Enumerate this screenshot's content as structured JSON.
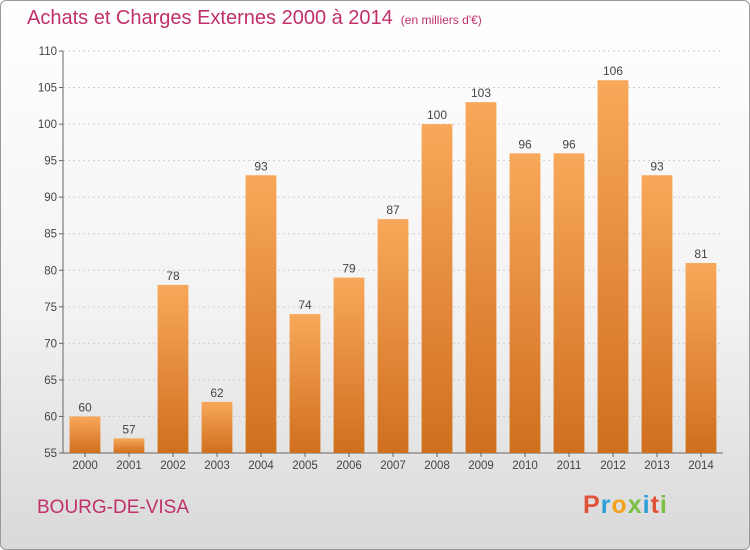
{
  "header": {
    "title": "Achats et Charges Externes 2000 à 2014",
    "unit": "(en milliers d'€)"
  },
  "footer": {
    "town": "BOURG-DE-VISA",
    "logo_letters": [
      "P",
      "r",
      "o",
      "x",
      "i",
      "t",
      "i"
    ]
  },
  "colors": {
    "title": "#c0306a",
    "bar_top": "#f8a85a",
    "bar_bottom": "#d06f1e",
    "logo": [
      "#e0533a",
      "#2aa0d8",
      "#f2a21b",
      "#7cc043",
      "#2aa0d8",
      "#e0533a",
      "#7cc043"
    ]
  },
  "chart_data": {
    "type": "bar",
    "title": "Achats et Charges Externes 2000 à 2014",
    "subtitle": "(en milliers d'€)",
    "categories": [
      "2000",
      "2001",
      "2002",
      "2003",
      "2004",
      "2005",
      "2006",
      "2007",
      "2008",
      "2009",
      "2010",
      "2011",
      "2012",
      "2013",
      "2014"
    ],
    "values": [
      60,
      57,
      78,
      62,
      93,
      74,
      79,
      87,
      100,
      103,
      96,
      96,
      106,
      93,
      81
    ],
    "ylim": [
      55,
      110
    ],
    "yticks": [
      55,
      60,
      65,
      70,
      75,
      80,
      85,
      90,
      95,
      100,
      105,
      110
    ],
    "grid": true,
    "data_labels": true
  }
}
